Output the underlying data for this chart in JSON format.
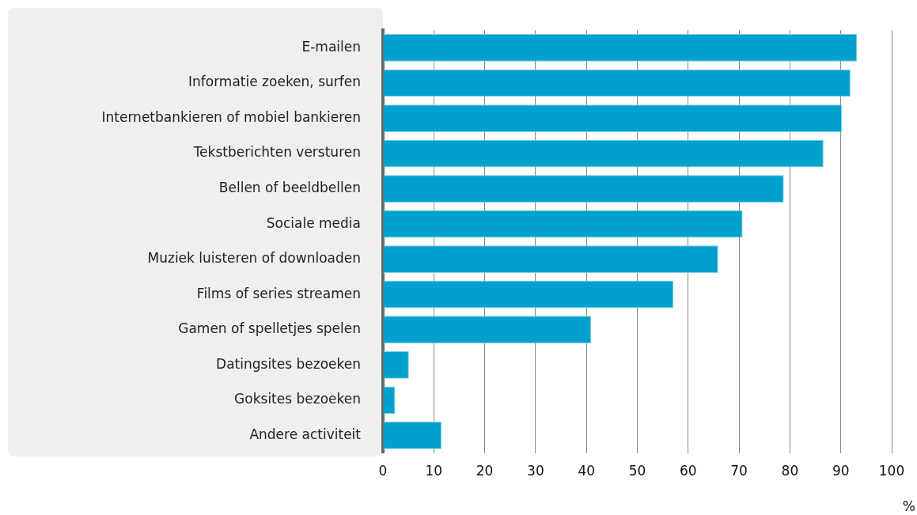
{
  "chart_data": {
    "type": "bar",
    "orientation": "horizontal",
    "xlabel": "%",
    "categories": [
      "E-mailen",
      "Informatie zoeken, surfen",
      "Internetbankieren of mobiel bankieren",
      "Tekstberichten versturen",
      "Bellen of beeldbellen",
      "Sociale media",
      "Muziek luisteren of downloaden",
      "Films of series streamen",
      "Gamen of spelletjes spelen",
      "Datingsites bezoeken",
      "Goksites bezoeken",
      "Andere activiteit"
    ],
    "values": [
      93.2,
      91.9,
      90.2,
      86.6,
      78.8,
      70.7,
      65.9,
      57.1,
      40.9,
      5.1,
      2.4,
      11.5
    ],
    "color": "#00a1cd",
    "xlim": [
      0,
      100
    ],
    "xticks": [
      0,
      10,
      20,
      30,
      40,
      50,
      60,
      70,
      80,
      90,
      100
    ],
    "grid": "x"
  }
}
